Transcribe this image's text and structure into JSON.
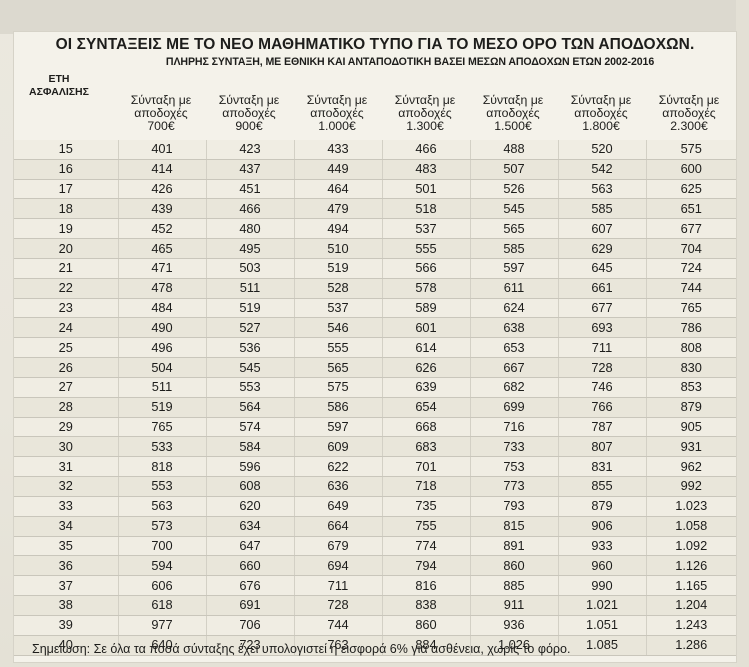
{
  "title": "ΟΙ ΣΥΝΤΑΞΕΙΣ ΜΕ ΤΟ ΝΕΟ ΜΑΘΗΜΑΤΙΚΟ ΤΥΠΟ ΓΙΑ ΤΟ ΜΕΣΟ ΟΡΟ ΤΩΝ ΑΠΟΔΟΧΩΝ.",
  "subtitle": "ΠΛΗΡΗΣ ΣΥΝΤΑΞΗ, ΜΕ ΕΘΝΙΚΗ ΚΑΙ ΑΝΤΑΠΟΔΟΤΙΚΗ ΒΑΣΕΙ ΜΕΣΩΝ ΑΠΟΔΟΧΩΝ ΕΤΩΝ 2002-2016",
  "row_label_header": {
    "line1": "ΕΤΗ",
    "line2": "ΑΣΦΑΛΙΣΗΣ"
  },
  "columns": [
    {
      "line1": "Σύνταξη με",
      "line2": "αποδοχές",
      "line3": "700€"
    },
    {
      "line1": "Σύνταξη με",
      "line2": "αποδοχές",
      "line3": "900€"
    },
    {
      "line1": "Σύνταξη με",
      "line2": "αποδοχές",
      "line3": "1.000€"
    },
    {
      "line1": "Σύνταξη με",
      "line2": "αποδοχές",
      "line3": "1.300€"
    },
    {
      "line1": "Σύνταξη με",
      "line2": "αποδοχές",
      "line3": "1.500€"
    },
    {
      "line1": "Σύνταξη με",
      "line2": "αποδοχές",
      "line3": "1.800€"
    },
    {
      "line1": "Σύνταξη με",
      "line2": "αποδοχές",
      "line3": "2.300€"
    }
  ],
  "rows": [
    {
      "years": "15",
      "values": [
        "401",
        "423",
        "433",
        "466",
        "488",
        "520",
        "575"
      ]
    },
    {
      "years": "16",
      "values": [
        "414",
        "437",
        "449",
        "483",
        "507",
        "542",
        "600"
      ]
    },
    {
      "years": "17",
      "values": [
        "426",
        "451",
        "464",
        "501",
        "526",
        "563",
        "625"
      ]
    },
    {
      "years": "18",
      "values": [
        "439",
        "466",
        "479",
        "518",
        "545",
        "585",
        "651"
      ]
    },
    {
      "years": "19",
      "values": [
        "452",
        "480",
        "494",
        "537",
        "565",
        "607",
        "677"
      ]
    },
    {
      "years": "20",
      "values": [
        "465",
        "495",
        "510",
        "555",
        "585",
        "629",
        "704"
      ]
    },
    {
      "years": "21",
      "values": [
        "471",
        "503",
        "519",
        "566",
        "597",
        "645",
        "724"
      ]
    },
    {
      "years": "22",
      "values": [
        "478",
        "511",
        "528",
        "578",
        "611",
        "661",
        "744"
      ]
    },
    {
      "years": "23",
      "values": [
        "484",
        "519",
        "537",
        "589",
        "624",
        "677",
        "765"
      ]
    },
    {
      "years": "24",
      "values": [
        "490",
        "527",
        "546",
        "601",
        "638",
        "693",
        "786"
      ]
    },
    {
      "years": "25",
      "values": [
        "496",
        "536",
        "555",
        "614",
        "653",
        "711",
        "808"
      ]
    },
    {
      "years": "26",
      "values": [
        "504",
        "545",
        "565",
        "626",
        "667",
        "728",
        "830"
      ]
    },
    {
      "years": "27",
      "values": [
        "511",
        "553",
        "575",
        "639",
        "682",
        "746",
        "853"
      ]
    },
    {
      "years": "28",
      "values": [
        "519",
        "564",
        "586",
        "654",
        "699",
        "766",
        "879"
      ]
    },
    {
      "years": "29",
      "values": [
        "765",
        "574",
        "597",
        "668",
        "716",
        "787",
        "905"
      ]
    },
    {
      "years": "30",
      "values": [
        "533",
        "584",
        "609",
        "683",
        "733",
        "807",
        "931"
      ]
    },
    {
      "years": "31",
      "values": [
        "818",
        "596",
        "622",
        "701",
        "753",
        "831",
        "962"
      ]
    },
    {
      "years": "32",
      "values": [
        "553",
        "608",
        "636",
        "718",
        "773",
        "855",
        "992"
      ]
    },
    {
      "years": "33",
      "values": [
        "563",
        "620",
        "649",
        "735",
        "793",
        "879",
        "1.023"
      ]
    },
    {
      "years": "34",
      "values": [
        "573",
        "634",
        "664",
        "755",
        "815",
        "906",
        "1.058"
      ]
    },
    {
      "years": "35",
      "values": [
        "700",
        "647",
        "679",
        "774",
        "891",
        "933",
        "1.092"
      ]
    },
    {
      "years": "36",
      "values": [
        "594",
        "660",
        "694",
        "794",
        "860",
        "960",
        "1.126"
      ]
    },
    {
      "years": "37",
      "values": [
        "606",
        "676",
        "711",
        "816",
        "885",
        "990",
        "1.165"
      ]
    },
    {
      "years": "38",
      "values": [
        "618",
        "691",
        "728",
        "838",
        "911",
        "1.021",
        "1.204"
      ]
    },
    {
      "years": "39",
      "values": [
        "977",
        "706",
        "744",
        "860",
        "936",
        "1.051",
        "1.243"
      ]
    },
    {
      "years": "40",
      "values": [
        "640",
        "723",
        "763",
        "884",
        "1.026",
        "1.085",
        "1.286"
      ]
    }
  ],
  "note": "Σημείωση: Σε όλα τα ποσά σύνταξης έχει υπολογιστεί η εισφορά 6% για ασθένεια, χωρίς το φόρο."
}
